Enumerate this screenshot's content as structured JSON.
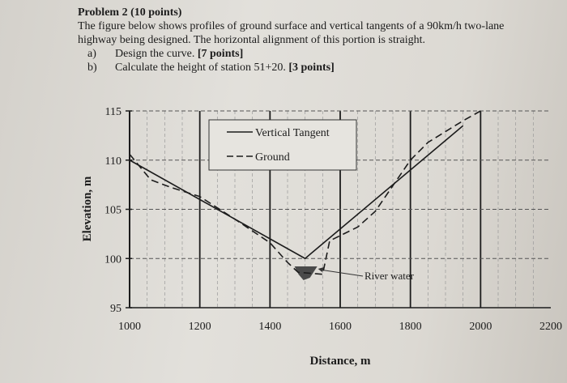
{
  "problem": {
    "title": "Problem 2 (10 points)",
    "statement_line1": "The figure below shows profiles of ground surface and vertical tangents of a 90km/h two-lane",
    "statement_line2": "highway being designed. The horizontal alignment of this portion is straight.",
    "part_a_marker": "a)",
    "part_a": "Design the curve. ",
    "part_a_points": "[7 points]",
    "part_b_marker": "b)",
    "part_b": "Calculate the height of station 51+20. ",
    "part_b_points": "[3 points]"
  },
  "chart_data": {
    "type": "line",
    "xlabel": "Distance, m",
    "ylabel": "Elevation, m",
    "xlim": [
      1000,
      2200
    ],
    "ylim": [
      95,
      115
    ],
    "xticks": [
      1000,
      1200,
      1400,
      1600,
      1800,
      2000,
      2200
    ],
    "yticks": [
      95,
      100,
      105,
      110,
      115
    ],
    "grid": true,
    "legend_placement": "top-center",
    "series": [
      {
        "name": "Vertical Tangent",
        "style": "solid",
        "x": [
          1000,
          1500,
          1950
        ],
        "y": [
          110,
          100,
          113.5
        ]
      },
      {
        "name": "Ground",
        "style": "dashed",
        "x": [
          1000,
          1060,
          1120,
          1200,
          1300,
          1400,
          1450,
          1480,
          1550,
          1570,
          1650,
          1700,
          1800,
          1850,
          1950,
          2000
        ],
        "y": [
          110.6,
          108,
          107.2,
          106.3,
          104,
          101.6,
          99.6,
          98.6,
          98.4,
          101.8,
          103.2,
          104.8,
          110,
          111.8,
          114,
          115
        ]
      }
    ],
    "annotations": [
      {
        "text": "River water",
        "x": 1500,
        "y": 98.5
      }
    ],
    "colors": {
      "ink": "#1c1c1c",
      "water": "#4a4a4a"
    }
  }
}
